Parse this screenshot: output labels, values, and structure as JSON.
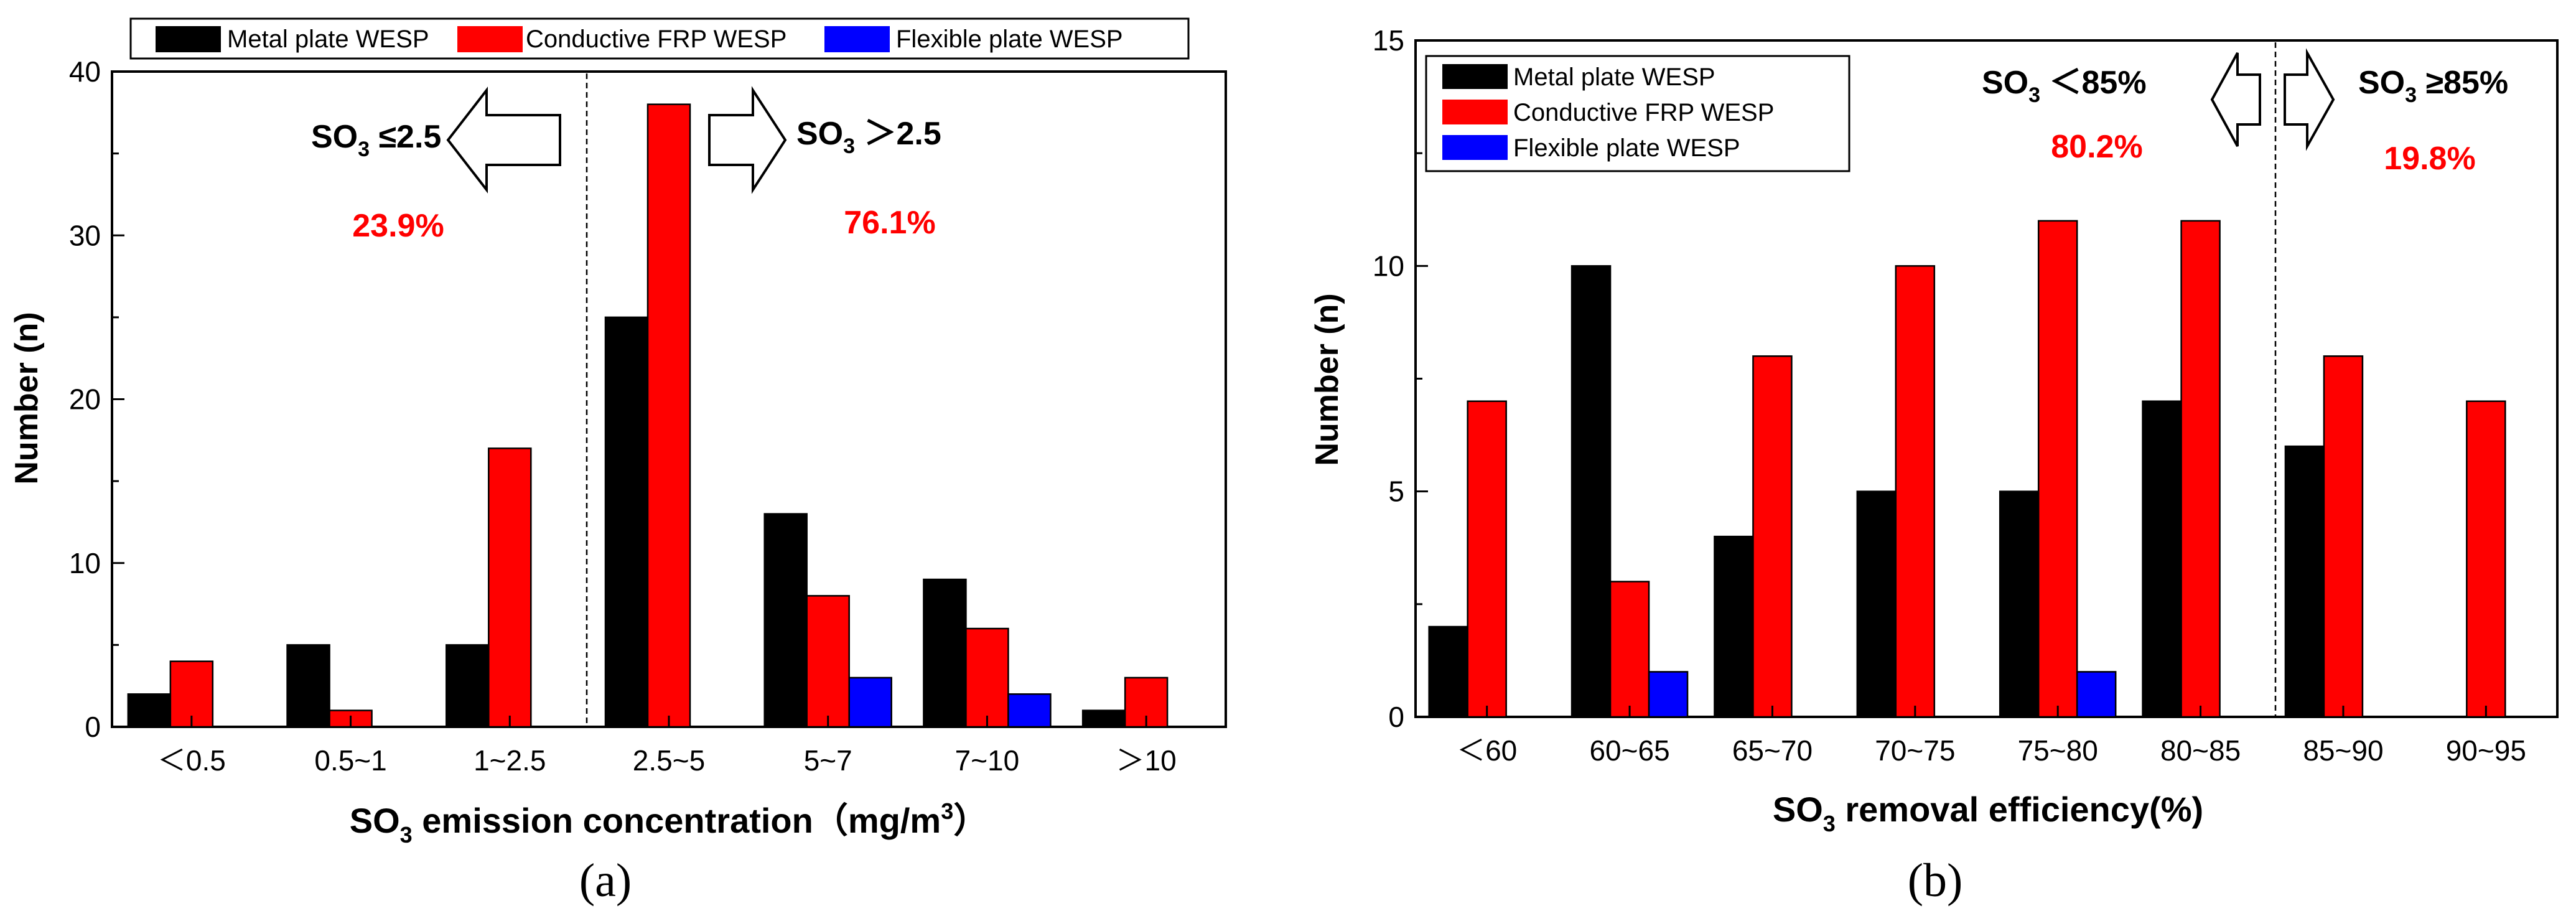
{
  "colors": {
    "metal": "#000000",
    "frp": "#ff0000",
    "flexible": "#0000ff",
    "accent": "#ff0000",
    "axis": "#000000"
  },
  "chart_data": [
    {
      "id": "a",
      "type": "bar",
      "panel_label": "(a)",
      "xlabel_main": "SO",
      "xlabel_sub": "3",
      "xlabel_rest": " emission concentration（mg/m",
      "xlabel_sup": "3",
      "xlabel_end": "）",
      "ylabel": "Number (n)",
      "ylim": [
        0,
        40
      ],
      "yticks": [
        0,
        10,
        20,
        30,
        40
      ],
      "categories": [
        "＜0.5",
        "0.5~1",
        "1~2.5",
        "2.5~5",
        "5~7",
        "7~10",
        "＞10"
      ],
      "series": [
        {
          "name": "Metal plate WESP",
          "color": "#000000",
          "values": [
            2,
            5,
            5,
            25,
            13,
            9,
            1
          ]
        },
        {
          "name": "Conductive FRP WESP",
          "color": "#ff0000",
          "values": [
            4,
            1,
            17,
            38,
            8,
            6,
            3
          ]
        },
        {
          "name": "Flexible plate WESP",
          "color": "#0000ff",
          "values": [
            0,
            0,
            0,
            0,
            3,
            2,
            0
          ]
        }
      ],
      "divider_after_index": 2,
      "legend_position": "top (outside)",
      "annotations": {
        "left_label": "SO",
        "left_sub": "3",
        "left_rel": " ≤2.5",
        "left_pct": "23.9%",
        "right_label": "SO",
        "right_sub": "3",
        "right_rel": " ＞2.5",
        "right_pct": "76.1%"
      }
    },
    {
      "id": "b",
      "type": "bar",
      "panel_label": "(b)",
      "xlabel_main": "SO",
      "xlabel_sub": "3",
      "xlabel_rest": " removal efficiency(%)",
      "ylabel": "Number (n)",
      "ylim": [
        0,
        15
      ],
      "yticks": [
        0,
        5,
        10,
        15
      ],
      "categories": [
        "＜60",
        "60~65",
        "65~70",
        "70~75",
        "75~80",
        "80~85",
        "85~90",
        "90~95"
      ],
      "series": [
        {
          "name": "Metal plate WESP",
          "color": "#000000",
          "values": [
            2,
            10,
            4,
            5,
            5,
            7,
            6,
            0
          ]
        },
        {
          "name": "Conductive FRP WESP",
          "color": "#ff0000",
          "values": [
            7,
            3,
            8,
            10,
            11,
            11,
            8,
            7
          ]
        },
        {
          "name": "Flexible plate WESP",
          "color": "#0000ff",
          "values": [
            0,
            1,
            0,
            0,
            1,
            0,
            0,
            0
          ]
        }
      ],
      "divider_after_index": 5,
      "legend_position": "top-left (inside)",
      "annotations": {
        "left_label": "SO",
        "left_sub": "3",
        "left_rel": " ＜85%",
        "left_pct": "80.2%",
        "right_label": "SO",
        "right_sub": "3",
        "right_rel": " ≥85%",
        "right_pct": "19.8%"
      }
    }
  ]
}
